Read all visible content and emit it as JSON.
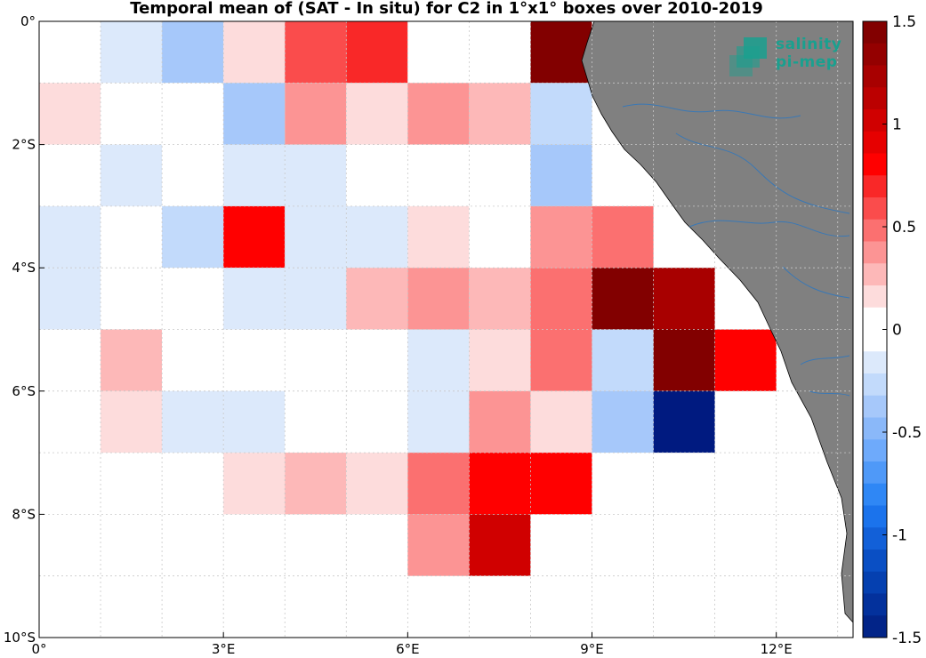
{
  "chart_data": {
    "type": "heatmap",
    "title": "Temporal mean of (SAT - In situ) for C2 in 1°x1° boxes over 2010-2019",
    "xlabel": "",
    "ylabel": "",
    "x_ticks": [
      {
        "value": 0,
        "label": "0°"
      },
      {
        "value": 3,
        "label": "3°E"
      },
      {
        "value": 6,
        "label": "6°E"
      },
      {
        "value": 9,
        "label": "9°E"
      },
      {
        "value": 12,
        "label": "12°E"
      }
    ],
    "y_ticks": [
      {
        "value": 0,
        "label": "0°"
      },
      {
        "value": -2,
        "label": "2°S"
      },
      {
        "value": -4,
        "label": "4°S"
      },
      {
        "value": -6,
        "label": "6°S"
      },
      {
        "value": -8,
        "label": "8°S"
      },
      {
        "value": -10,
        "label": "10°S"
      }
    ],
    "xlim": [
      0,
      13.25
    ],
    "ylim": [
      -10,
      0
    ],
    "grid": true,
    "colorbar": {
      "range": [
        -1.5,
        1.5
      ],
      "levels": 28,
      "ticks": [
        {
          "value": 1.5,
          "label": "1.5"
        },
        {
          "value": 1,
          "label": "1"
        },
        {
          "value": 0.5,
          "label": "0.5"
        },
        {
          "value": 0,
          "label": "0"
        },
        {
          "value": -0.5,
          "label": "-0.5"
        },
        {
          "value": -1,
          "label": "-1"
        },
        {
          "value": -1.5,
          "label": "-1.5"
        }
      ]
    },
    "cells": [
      {
        "lon": 0,
        "lat": 0,
        "value": 0.0
      },
      {
        "lon": 1,
        "lat": 0,
        "value": -0.15
      },
      {
        "lon": 2,
        "lat": 0,
        "value": -0.4
      },
      {
        "lon": 3,
        "lat": 0,
        "value": 0.15
      },
      {
        "lon": 4,
        "lat": 0,
        "value": 0.55
      },
      {
        "lon": 5,
        "lat": 0,
        "value": 0.65
      },
      {
        "lon": 6,
        "lat": 0,
        "value": 0.0
      },
      {
        "lon": 7,
        "lat": 0,
        "value": 0.0
      },
      {
        "lon": 8,
        "lat": 0,
        "value": 1.45
      },
      {
        "lon": 0,
        "lat": -1,
        "value": 0.15
      },
      {
        "lon": 1,
        "lat": -1,
        "value": 0.0
      },
      {
        "lon": 2,
        "lat": -1,
        "value": 0.0
      },
      {
        "lon": 3,
        "lat": -1,
        "value": -0.35
      },
      {
        "lon": 4,
        "lat": -1,
        "value": 0.4
      },
      {
        "lon": 5,
        "lat": -1,
        "value": 0.1
      },
      {
        "lon": 6,
        "lat": -1,
        "value": 0.35
      },
      {
        "lon": 7,
        "lat": -1,
        "value": 0.25
      },
      {
        "lon": 8,
        "lat": -1,
        "value": -0.25
      },
      {
        "lon": 0,
        "lat": -2,
        "value": 0.0
      },
      {
        "lon": 1,
        "lat": -2,
        "value": -0.2
      },
      {
        "lon": 2,
        "lat": -2,
        "value": 0.0
      },
      {
        "lon": 3,
        "lat": -2,
        "value": -0.1
      },
      {
        "lon": 4,
        "lat": -2,
        "value": -0.1
      },
      {
        "lon": 5,
        "lat": -2,
        "value": 0.0
      },
      {
        "lon": 6,
        "lat": -2,
        "value": 0.0
      },
      {
        "lon": 7,
        "lat": -2,
        "value": 0.0
      },
      {
        "lon": 8,
        "lat": -2,
        "value": -0.4
      },
      {
        "lon": 0,
        "lat": -3,
        "value": -0.1
      },
      {
        "lon": 1,
        "lat": -3,
        "value": 0.0
      },
      {
        "lon": 2,
        "lat": -3,
        "value": -0.3
      },
      {
        "lon": 3,
        "lat": -3,
        "value": 0.75
      },
      {
        "lon": 4,
        "lat": -3,
        "value": -0.1
      },
      {
        "lon": 5,
        "lat": -3,
        "value": -0.2
      },
      {
        "lon": 6,
        "lat": -3,
        "value": 0.15
      },
      {
        "lon": 7,
        "lat": -3,
        "value": 0.0
      },
      {
        "lon": 8,
        "lat": -3,
        "value": 0.35
      },
      {
        "lon": 9,
        "lat": -3,
        "value": 0.45
      },
      {
        "lon": 0,
        "lat": -4,
        "value": -0.1
      },
      {
        "lon": 1,
        "lat": -4,
        "value": 0.0
      },
      {
        "lon": 2,
        "lat": -4,
        "value": 0.0
      },
      {
        "lon": 3,
        "lat": -4,
        "value": -0.1
      },
      {
        "lon": 4,
        "lat": -4,
        "value": -0.1
      },
      {
        "lon": 5,
        "lat": -4,
        "value": 0.25
      },
      {
        "lon": 6,
        "lat": -4,
        "value": 0.35
      },
      {
        "lon": 7,
        "lat": -4,
        "value": 0.25
      },
      {
        "lon": 8,
        "lat": -4,
        "value": 0.45
      },
      {
        "lon": 9,
        "lat": -4,
        "value": 1.45
      },
      {
        "lon": 10,
        "lat": -4,
        "value": 1.25
      },
      {
        "lon": 0,
        "lat": -5,
        "value": 0.0
      },
      {
        "lon": 1,
        "lat": -5,
        "value": 0.25
      },
      {
        "lon": 2,
        "lat": -5,
        "value": 0.0
      },
      {
        "lon": 3,
        "lat": -5,
        "value": 0.0
      },
      {
        "lon": 4,
        "lat": -5,
        "value": 0.0
      },
      {
        "lon": 5,
        "lat": -5,
        "value": 0.0
      },
      {
        "lon": 6,
        "lat": -5,
        "value": -0.1
      },
      {
        "lon": 7,
        "lat": -5,
        "value": 0.1
      },
      {
        "lon": 8,
        "lat": -5,
        "value": 0.45
      },
      {
        "lon": 9,
        "lat": -5,
        "value": -0.25
      },
      {
        "lon": 10,
        "lat": -5,
        "value": 1.45
      },
      {
        "lon": 11,
        "lat": -5,
        "value": 0.85
      },
      {
        "lon": 0,
        "lat": -6,
        "value": 0.0
      },
      {
        "lon": 1,
        "lat": -6,
        "value": 0.1
      },
      {
        "lon": 2,
        "lat": -6,
        "value": -0.1
      },
      {
        "lon": 3,
        "lat": -6,
        "value": -0.1
      },
      {
        "lon": 4,
        "lat": -6,
        "value": 0.0
      },
      {
        "lon": 5,
        "lat": -6,
        "value": 0.0
      },
      {
        "lon": 6,
        "lat": -6,
        "value": -0.1
      },
      {
        "lon": 7,
        "lat": -6,
        "value": 0.35
      },
      {
        "lon": 8,
        "lat": -6,
        "value": 0.1
      },
      {
        "lon": 9,
        "lat": -6,
        "value": -0.35
      },
      {
        "lon": 10,
        "lat": -6,
        "value": -1.5
      },
      {
        "lon": 3,
        "lat": -7,
        "value": 0.15
      },
      {
        "lon": 4,
        "lat": -7,
        "value": 0.25
      },
      {
        "lon": 5,
        "lat": -7,
        "value": 0.15
      },
      {
        "lon": 6,
        "lat": -7,
        "value": 0.45
      },
      {
        "lon": 7,
        "lat": -7,
        "value": 0.85
      },
      {
        "lon": 8,
        "lat": -7,
        "value": 0.85
      },
      {
        "lon": 6,
        "lat": -8,
        "value": 0.35
      },
      {
        "lon": 7,
        "lat": -8,
        "value": 1.05
      }
    ]
  },
  "logo": {
    "line1": "salinity",
    "line2": "pi-mep"
  }
}
